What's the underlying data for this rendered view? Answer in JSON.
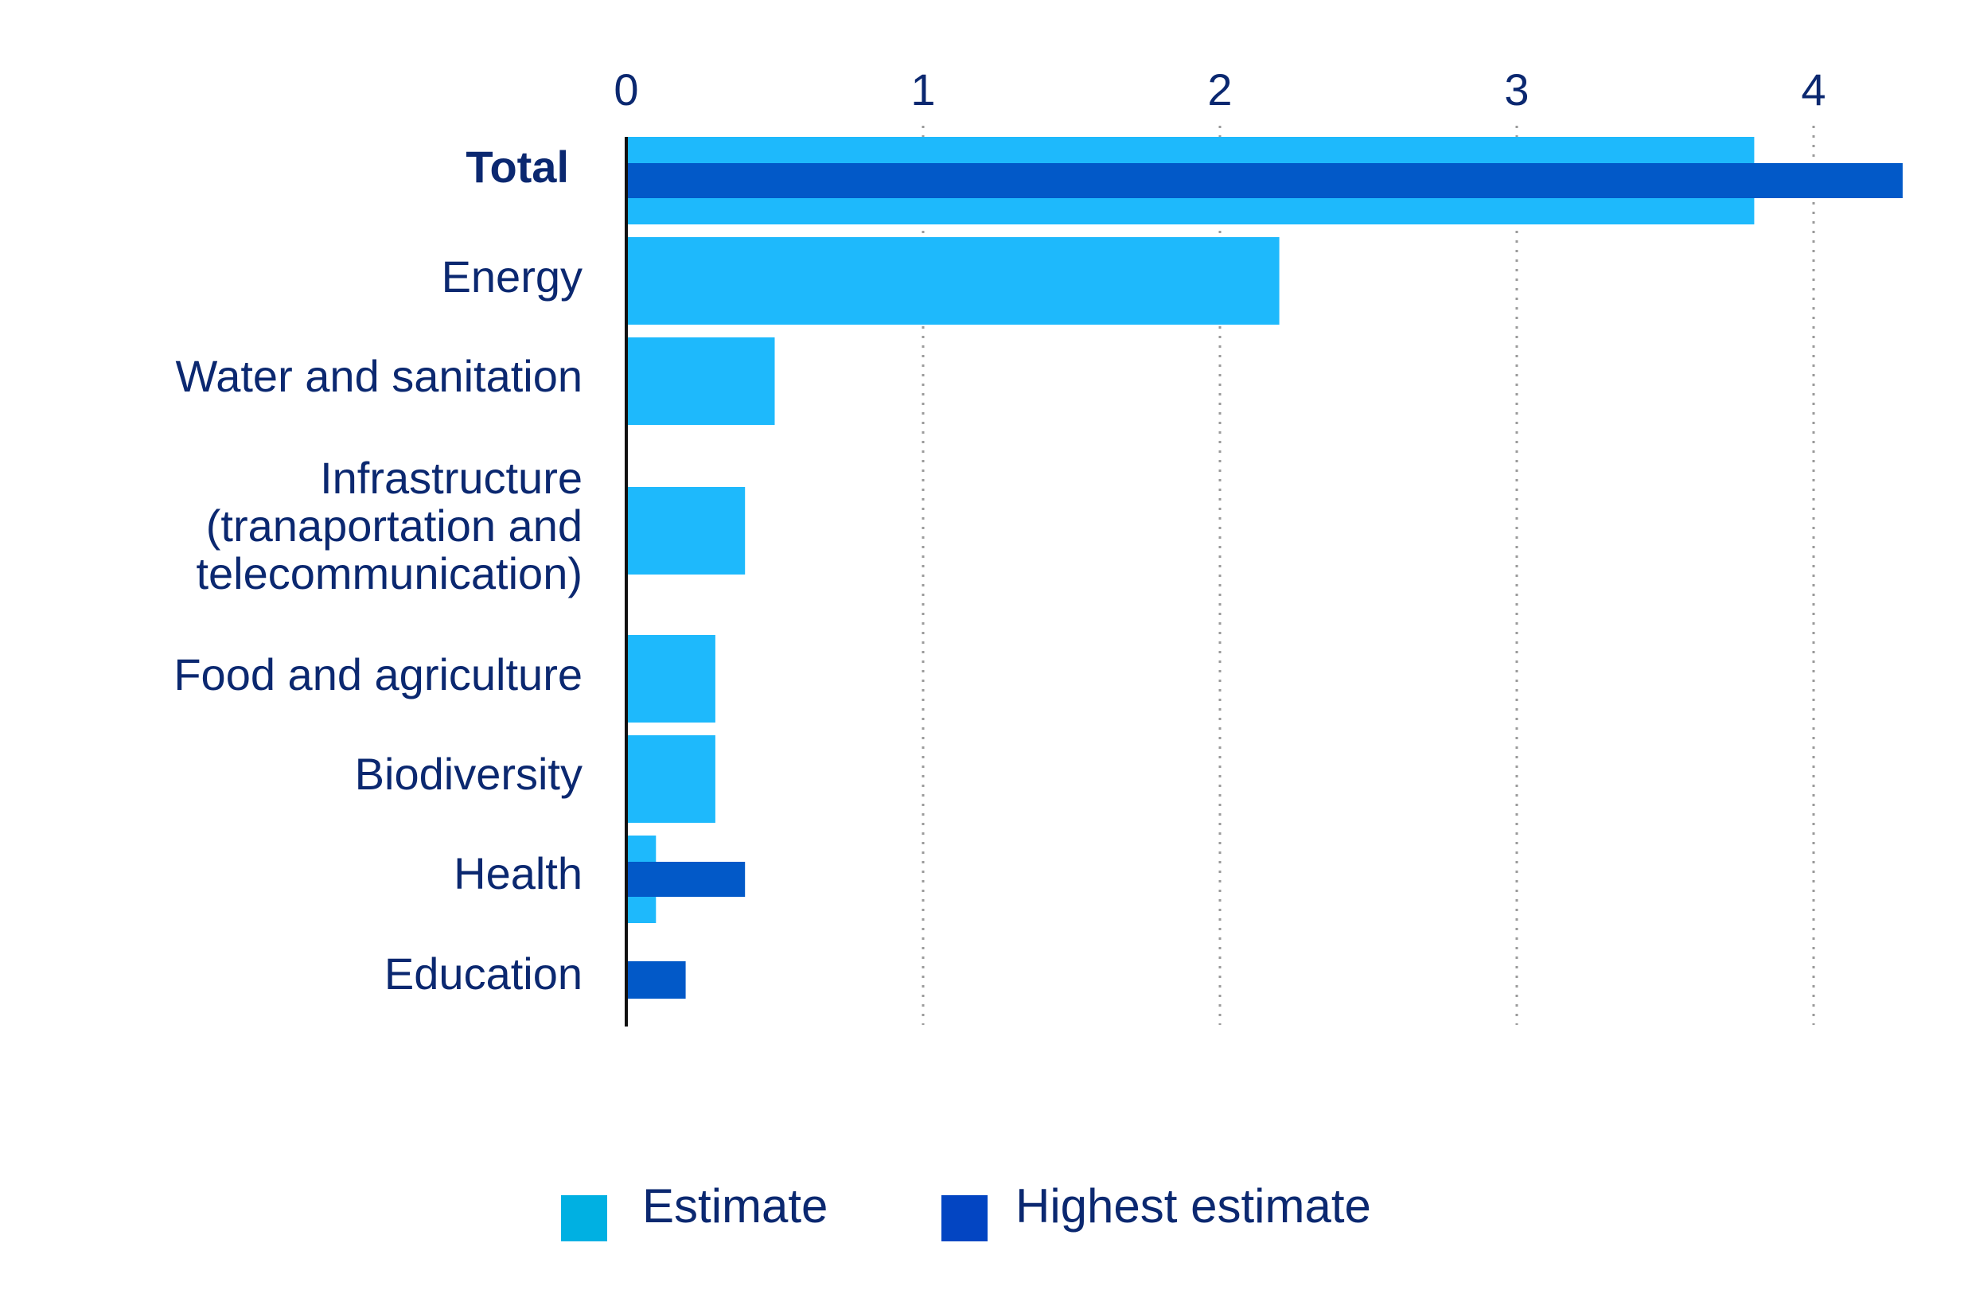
{
  "chart_data": {
    "type": "bar",
    "orientation": "horizontal",
    "title": "",
    "xlabel": "",
    "ylabel": "",
    "xlim": [
      0,
      4.3
    ],
    "x_ticks": [
      "0",
      "1",
      "2",
      "3",
      "4"
    ],
    "grid": true,
    "legend_position": "bottom",
    "categories": [
      [
        "Total"
      ],
      [
        "Energy"
      ],
      [
        "Water and sanitation"
      ],
      [
        "Infrastructure",
        "(tranaportation and",
        "telecommunication)"
      ],
      [
        "Food and agriculture"
      ],
      [
        "Biodiversity"
      ],
      [
        "Health"
      ],
      [
        "Education"
      ]
    ],
    "emphasized_categories": [
      0
    ],
    "series": [
      {
        "name": "Estimate",
        "color": "#1eb9fc",
        "legend_color": "#00b0e2",
        "values": [
          3.8,
          2.2,
          0.5,
          0.4,
          0.3,
          0.3,
          0.1,
          null
        ]
      },
      {
        "name": "Highest estimate",
        "color": "#0259c8",
        "legend_color": "#0345c2",
        "values": [
          4.3,
          null,
          null,
          null,
          null,
          null,
          0.4,
          0.2
        ]
      }
    ]
  }
}
